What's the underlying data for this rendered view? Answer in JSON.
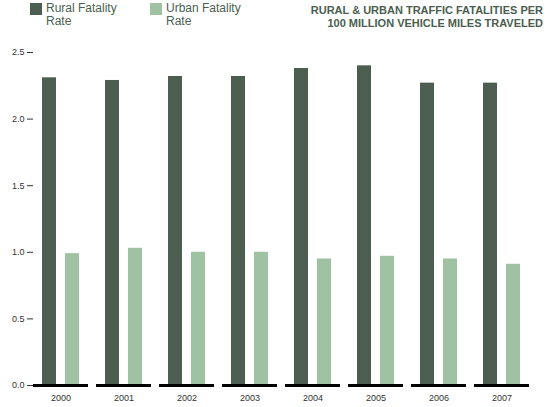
{
  "chart_data": {
    "type": "bar",
    "title": "RURAL & URBAN TRAFFIC FATALITIES PER 100 MILLION VEHICLE MILES TRAVELED",
    "categories": [
      "2000",
      "2001",
      "2002",
      "2003",
      "2004",
      "2005",
      "2006",
      "2007"
    ],
    "series": [
      {
        "name": "Rural Fatality Rate",
        "color": "#4b5e4f",
        "values": [
          2.31,
          2.29,
          2.32,
          2.32,
          2.38,
          2.4,
          2.27,
          2.27
        ]
      },
      {
        "name": "Urban Fatality Rate",
        "color": "#9fc3a2",
        "values": [
          0.99,
          1.03,
          1.0,
          1.0,
          0.95,
          0.97,
          0.95,
          0.91
        ]
      }
    ],
    "ylim": [
      0,
      2.5
    ],
    "yticks": [
      {
        "value": 0,
        "label": "0.0"
      },
      0.5,
      {
        "value": 1,
        "label": "1.0"
      },
      1.5,
      {
        "value": 2,
        "label": "2.0"
      },
      2.5
    ],
    "grid": false,
    "legend": "top-left"
  }
}
